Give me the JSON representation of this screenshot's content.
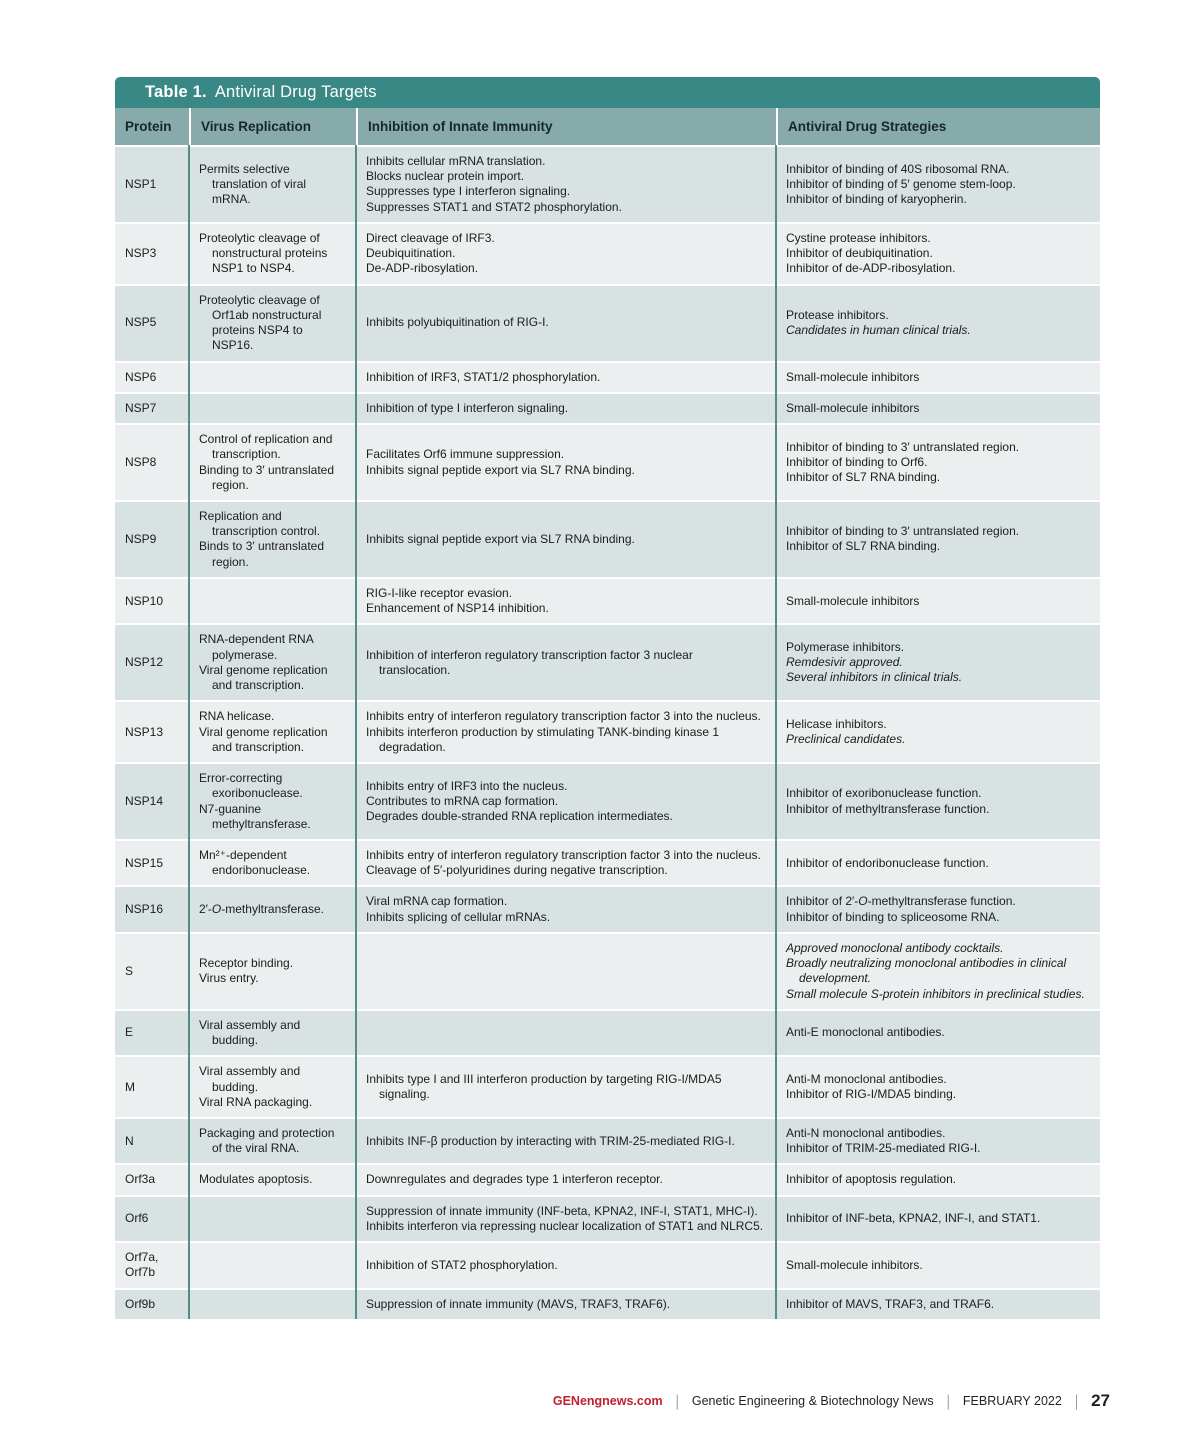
{
  "table": {
    "title_prefix": "Table 1.",
    "title": "Antiviral Drug Targets",
    "colors": {
      "title_bar": "#398886",
      "header_row": "#86abaa",
      "row_dark": "#d8e2e2",
      "row_light": "#ebefef",
      "column_divider": "#558c89",
      "footer_brand_red": "#c1202f"
    },
    "columns": [
      "Protein",
      "Virus Replication",
      "Inhibition of Innate Immunity",
      "Antiviral Drug Strategies"
    ],
    "rows": [
      {
        "protein": "NSP1",
        "virus_replication": [
          "Permits selective translation of viral mRNA."
        ],
        "innate_immunity": [
          "Inhibits cellular mRNA translation.",
          "Blocks nuclear protein import.",
          "Suppresses type I interferon signaling.",
          "Suppresses STAT1 and STAT2 phosphorylation."
        ],
        "drug_strategies": [
          "Inhibitor of binding of 40S ribosomal RNA.",
          "Inhibitor of binding of 5′ genome stem-loop.",
          "Inhibitor of binding of karyopherin."
        ]
      },
      {
        "protein": "NSP3",
        "virus_replication": [
          "Proteolytic cleavage of nonstructural proteins NSP1 to NSP4."
        ],
        "innate_immunity": [
          "Direct cleavage of IRF3.",
          "Deubiquitination.",
          "De-ADP-ribosylation."
        ],
        "drug_strategies": [
          "Cystine protease inhibitors.",
          "Inhibitor of deubiquitination.",
          "Inhibitor of de-ADP-ribosylation."
        ]
      },
      {
        "protein": "NSP5",
        "virus_replication": [
          "Proteolytic cleavage of Orf1ab nonstructural proteins NSP4 to NSP16."
        ],
        "innate_immunity": [
          "Inhibits polyubiquitination of RIG-I."
        ],
        "drug_strategies": [
          "Protease inhibitors.",
          {
            "text": "Candidates in human clinical trials.",
            "italic": true
          }
        ]
      },
      {
        "protein": "NSP6",
        "virus_replication": [],
        "innate_immunity": [
          "Inhibition of IRF3, STAT1/2 phosphorylation."
        ],
        "drug_strategies": [
          "Small-molecule inhibitors"
        ]
      },
      {
        "protein": "NSP7",
        "virus_replication": [],
        "innate_immunity": [
          "Inhibition of type I interferon signaling."
        ],
        "drug_strategies": [
          "Small-molecule inhibitors"
        ]
      },
      {
        "protein": "NSP8",
        "virus_replication": [
          "Control of replication and transcription.",
          "Binding to 3′ untranslated region."
        ],
        "innate_immunity": [
          "Facilitates Orf6 immune suppression.",
          "Inhibits signal peptide export via SL7 RNA binding."
        ],
        "drug_strategies": [
          "Inhibitor of binding to 3′ untranslated region.",
          "Inhibitor of binding to Orf6.",
          "Inhibitor of SL7 RNA binding."
        ]
      },
      {
        "protein": "NSP9",
        "virus_replication": [
          "Replication and transcription control.",
          "Binds to 3′ untranslated region."
        ],
        "innate_immunity": [
          "Inhibits signal peptide export via SL7 RNA binding."
        ],
        "drug_strategies": [
          "Inhibitor of binding to 3′ untranslated region.",
          "Inhibitor of SL7 RNA binding."
        ]
      },
      {
        "protein": "NSP10",
        "virus_replication": [],
        "innate_immunity": [
          "RIG-I-like receptor evasion.",
          "Enhancement of NSP14 inhibition."
        ],
        "drug_strategies": [
          "Small-molecule inhibitors"
        ]
      },
      {
        "protein": "NSP12",
        "virus_replication": [
          "RNA-dependent RNA polymerase.",
          "Viral genome replication and transcription."
        ],
        "innate_immunity": [
          "Inhibition of interferon regulatory transcription factor 3 nuclear translocation."
        ],
        "drug_strategies": [
          "Polymerase inhibitors.",
          {
            "text": "Remdesivir approved.",
            "italic": true
          },
          {
            "text": "Several inhibitors in clinical trials.",
            "italic": true
          }
        ]
      },
      {
        "protein": "NSP13",
        "virus_replication": [
          "RNA helicase.",
          "Viral genome replication and transcription."
        ],
        "innate_immunity": [
          "Inhibits entry of interferon regulatory transcription factor 3 into the nucleus.",
          "Inhibits interferon production by stimulating TANK-binding kinase 1 degradation."
        ],
        "drug_strategies": [
          "Helicase inhibitors.",
          {
            "text": "Preclinical candidates.",
            "italic": true
          }
        ]
      },
      {
        "protein": "NSP14",
        "virus_replication": [
          "Error-correcting exoribonuclease.",
          "N7-guanine methyltransferase."
        ],
        "innate_immunity": [
          "Inhibits entry of IRF3 into the nucleus.",
          "Contributes to mRNA cap formation.",
          "Degrades double-stranded RNA replication intermediates."
        ],
        "drug_strategies": [
          "Inhibitor of exoribonuclease function.",
          "Inhibitor of methyltransferase function."
        ]
      },
      {
        "protein": "NSP15",
        "virus_replication": [
          "Mn²⁺-dependent endoribonuclease."
        ],
        "innate_immunity": [
          "Inhibits entry of interferon regulatory transcription factor 3 into the nucleus.",
          "Cleavage of 5′-polyuridines during negative transcription."
        ],
        "drug_strategies": [
          "Inhibitor of endoribonuclease function."
        ]
      },
      {
        "protein": "NSP16",
        "virus_replication": [
          "2′-*O*-methyltransferase."
        ],
        "innate_immunity": [
          "Viral mRNA cap formation.",
          "Inhibits splicing of cellular mRNAs."
        ],
        "drug_strategies": [
          "Inhibitor of 2′-*O*-methyltransferase function.",
          "Inhibitor of binding to spliceosome RNA."
        ]
      },
      {
        "protein": "S",
        "virus_replication": [
          "Receptor binding.",
          "Virus entry."
        ],
        "innate_immunity": [],
        "drug_strategies": [
          {
            "text": "Approved monoclonal antibody cocktails.",
            "italic": true
          },
          {
            "text": "Broadly neutralizing monoclonal antibodies in clinical development.",
            "italic": true
          },
          {
            "text": "Small molecule S-protein inhibitors in preclinical studies.",
            "italic": true
          }
        ]
      },
      {
        "protein": "E",
        "virus_replication": [
          "Viral assembly and budding."
        ],
        "innate_immunity": [],
        "drug_strategies": [
          "Anti-E monoclonal antibodies."
        ]
      },
      {
        "protein": "M",
        "virus_replication": [
          "Viral assembly and budding.",
          "Viral RNA packaging."
        ],
        "innate_immunity": [
          "Inhibits type I and III interferon production by targeting RIG-I/MDA5 signaling."
        ],
        "drug_strategies": [
          "Anti-M monoclonal antibodies.",
          "Inhibitor of RIG-I/MDA5 binding."
        ]
      },
      {
        "protein": "N",
        "virus_replication": [
          "Packaging and protection of the viral RNA."
        ],
        "innate_immunity": [
          "Inhibits INF-β production by interacting with TRIM-25-mediated RIG-I."
        ],
        "drug_strategies": [
          "Anti-N monoclonal antibodies.",
          "Inhibitor of TRIM-25-mediated RIG-I."
        ]
      },
      {
        "protein": "Orf3a",
        "virus_replication": [
          "Modulates apoptosis."
        ],
        "innate_immunity": [
          "Downregulates and degrades type 1 interferon receptor."
        ],
        "drug_strategies": [
          "Inhibitor of apoptosis regulation."
        ]
      },
      {
        "protein": "Orf6",
        "virus_replication": [],
        "innate_immunity": [
          "Suppression of innate immunity (INF-beta, KPNA2, INF-I, STAT1, MHC-I).",
          "Inhibits interferon via repressing nuclear localization of STAT1 and NLRC5."
        ],
        "drug_strategies": [
          "Inhibitor of INF-beta, KPNA2, INF-I, and STAT1."
        ]
      },
      {
        "protein": "Orf7a, Orf7b",
        "virus_replication": [],
        "innate_immunity": [
          "Inhibition of STAT2 phosphorylation."
        ],
        "drug_strategies": [
          "Small-molecule inhibitors."
        ]
      },
      {
        "protein": "Orf9b",
        "virus_replication": [],
        "innate_immunity": [
          "Suppression of innate immunity (MAVS, TRAF3, TRAF6)."
        ],
        "drug_strategies": [
          "Inhibitor of MAVS, TRAF3, and TRAF6."
        ]
      }
    ]
  },
  "footer": {
    "site": "GENengnews.com",
    "publication": "Genetic Engineering & Biotechnology News",
    "date": "FEBRUARY 2022",
    "page_number": "27"
  }
}
